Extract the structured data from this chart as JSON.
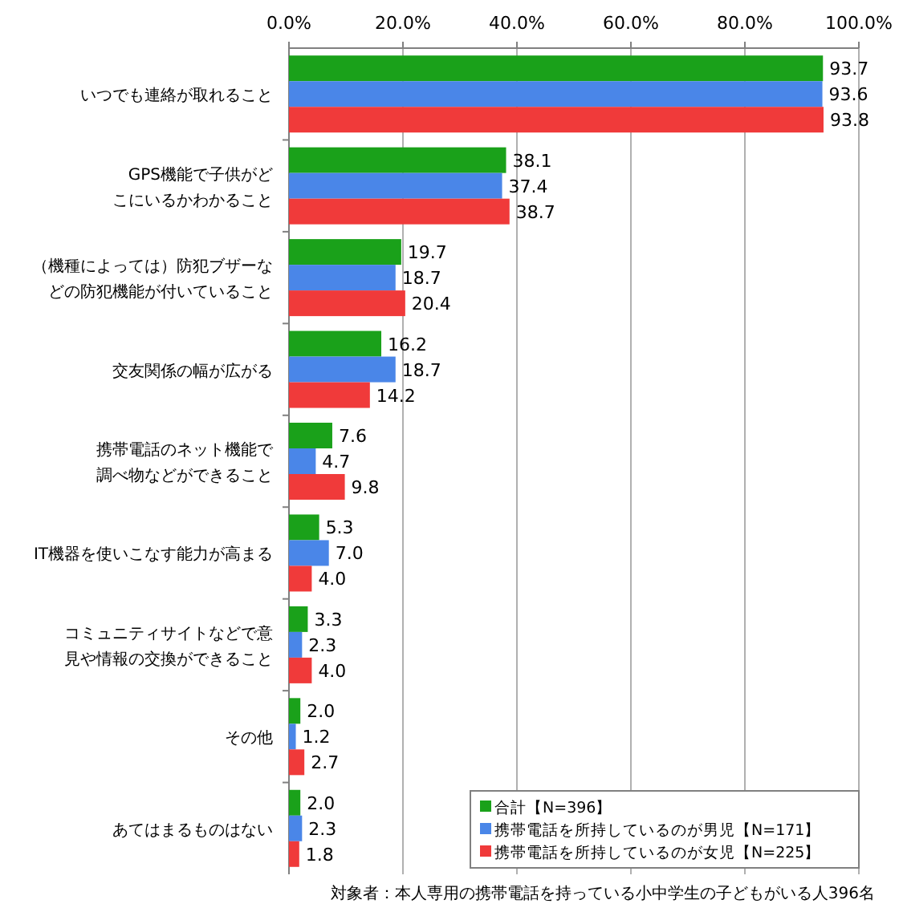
{
  "chart_data": {
    "type": "bar",
    "orientation": "horizontal",
    "categories": [
      "いつでも連絡が取れること",
      "GPS機能で子供がどこにいるかわかること",
      "（機種によっては）防犯ブザーなどの防犯機能が付いていること",
      "交友関係の幅が広がる",
      "携帯電話のネット機能で調べ物などができること",
      "IT機器を使いこなす能力が高まる",
      "コミュニティサイトなどで意見や情報の交換ができること",
      "その他",
      "あてはまるものはない"
    ],
    "series": [
      {
        "name": "合計【N=396】",
        "color": "#1aa11a",
        "values": [
          93.7,
          38.1,
          19.7,
          16.2,
          7.6,
          5.3,
          3.3,
          2.0,
          2.0
        ],
        "value_labels": [
          "93.7",
          "38.1",
          "19.7",
          "16.2",
          "7.6",
          "5.3",
          "3.3",
          "2.0",
          "2.0"
        ]
      },
      {
        "name": "携帯電話を所持しているのが男児【N=171】",
        "color": "#4a86e8",
        "values": [
          93.6,
          37.4,
          18.7,
          18.7,
          4.7,
          7.0,
          2.3,
          1.2,
          2.3
        ],
        "value_labels": [
          "93.6",
          "37.4",
          "18.7",
          "18.7",
          "4.7",
          "7.0",
          "2.3",
          "1.2",
          "2.3"
        ]
      },
      {
        "name": "携帯電話を所持しているのが女児【N=225】",
        "color": "#f03a3a",
        "values": [
          93.8,
          38.7,
          20.4,
          14.2,
          9.8,
          4.0,
          4.0,
          2.7,
          1.8
        ],
        "value_labels": [
          "93.8",
          "38.7",
          "20.4",
          "14.2",
          "9.8",
          "4.0",
          "4.0",
          "2.7",
          "1.8"
        ]
      }
    ],
    "xlim": [
      0,
      100
    ],
    "xticks": [
      {
        "value": 0,
        "label": "0.0%"
      },
      {
        "value": 20,
        "label": "20.0%"
      },
      {
        "value": 40,
        "label": "40.0%"
      },
      {
        "value": 60,
        "label": "60.0%"
      },
      {
        "value": 80,
        "label": "80.0%"
      },
      {
        "value": 100,
        "label": "100.0%"
      }
    ],
    "grid": "x",
    "legend": "bottom right",
    "annotations": [
      "対象者：本人専用の携帯電話を持っている小中学生の子どもがいる人396名"
    ]
  }
}
